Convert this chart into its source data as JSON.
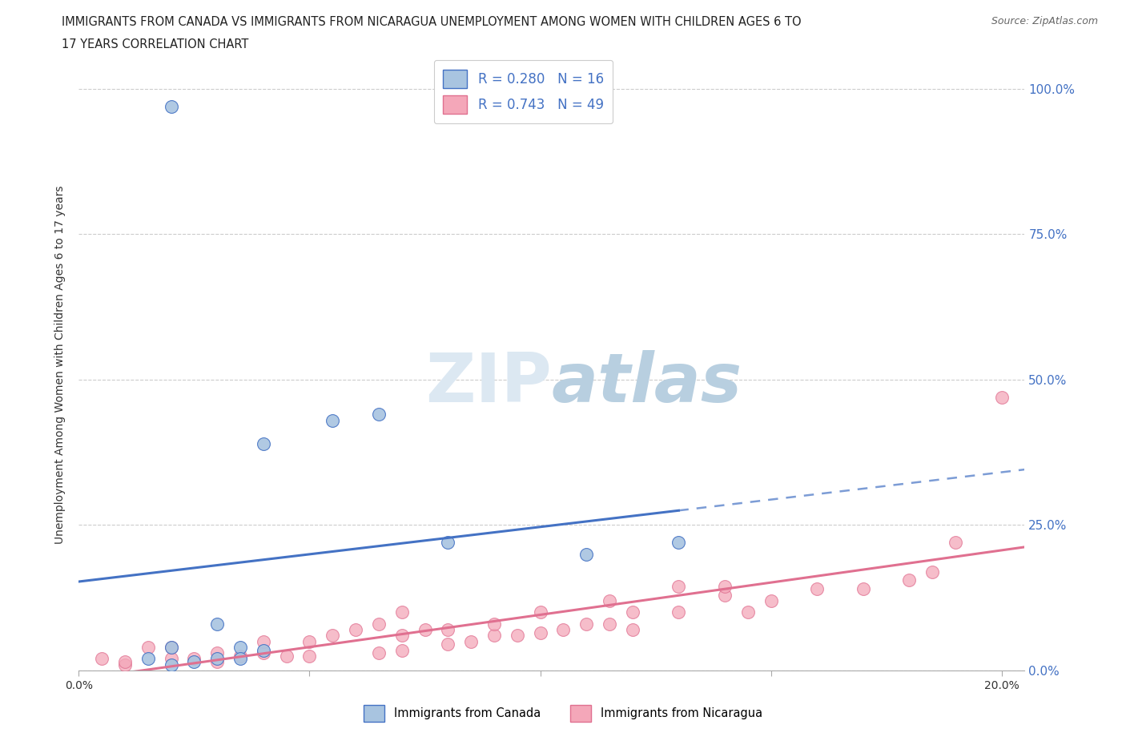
{
  "title_line1": "IMMIGRANTS FROM CANADA VS IMMIGRANTS FROM NICARAGUA UNEMPLOYMENT AMONG WOMEN WITH CHILDREN AGES 6 TO",
  "title_line2": "17 YEARS CORRELATION CHART",
  "source_text": "Source: ZipAtlas.com",
  "ylabel": "Unemployment Among Women with Children Ages 6 to 17 years",
  "canada_R": 0.28,
  "canada_N": 16,
  "nicaragua_R": 0.743,
  "nicaragua_N": 49,
  "canada_color": "#a8c4e0",
  "canada_line_color": "#4472C4",
  "nicaragua_color": "#f4a7b9",
  "nicaragua_line_color": "#e07090",
  "ylim_low": 0.0,
  "ylim_high": 1.05,
  "xlim_low": 0.0,
  "xlim_high": 0.205,
  "canada_x": [
    0.035,
    0.02,
    0.03,
    0.04,
    0.055,
    0.04,
    0.065,
    0.02,
    0.035,
    0.03,
    0.025,
    0.02,
    0.015,
    0.08,
    0.11,
    0.13
  ],
  "canada_y": [
    0.04,
    0.04,
    0.08,
    0.035,
    0.43,
    0.39,
    0.44,
    0.97,
    0.02,
    0.02,
    0.015,
    0.01,
    0.02,
    0.22,
    0.2,
    0.22
  ],
  "nicaragua_x": [
    0.005,
    0.01,
    0.015,
    0.01,
    0.02,
    0.02,
    0.025,
    0.03,
    0.03,
    0.035,
    0.04,
    0.04,
    0.045,
    0.05,
    0.05,
    0.055,
    0.06,
    0.065,
    0.065,
    0.07,
    0.07,
    0.07,
    0.075,
    0.08,
    0.08,
    0.085,
    0.09,
    0.09,
    0.095,
    0.1,
    0.1,
    0.105,
    0.11,
    0.115,
    0.115,
    0.12,
    0.12,
    0.13,
    0.13,
    0.14,
    0.14,
    0.145,
    0.15,
    0.16,
    0.17,
    0.18,
    0.185,
    0.19,
    0.2
  ],
  "nicaragua_y": [
    0.02,
    0.01,
    0.04,
    0.015,
    0.02,
    0.04,
    0.02,
    0.03,
    0.015,
    0.025,
    0.03,
    0.05,
    0.025,
    0.025,
    0.05,
    0.06,
    0.07,
    0.03,
    0.08,
    0.035,
    0.06,
    0.1,
    0.07,
    0.045,
    0.07,
    0.05,
    0.06,
    0.08,
    0.06,
    0.065,
    0.1,
    0.07,
    0.08,
    0.08,
    0.12,
    0.07,
    0.1,
    0.1,
    0.145,
    0.13,
    0.145,
    0.1,
    0.12,
    0.14,
    0.14,
    0.155,
    0.17,
    0.22,
    0.47
  ],
  "legend_label_canada": "Immigrants from Canada",
  "legend_label_nicaragua": "Immigrants from Nicaragua",
  "ytick_vals": [
    0.0,
    0.25,
    0.5,
    0.75,
    1.0
  ],
  "ytick_labels": [
    "0.0%",
    "25.0%",
    "50.0%",
    "75.0%",
    "100.0%"
  ],
  "xtick_vals": [
    0.0,
    0.05,
    0.1,
    0.15,
    0.2
  ],
  "watermark_zip_color": "#dce8f2",
  "watermark_atlas_color": "#c8dae8",
  "background_color": "#ffffff"
}
